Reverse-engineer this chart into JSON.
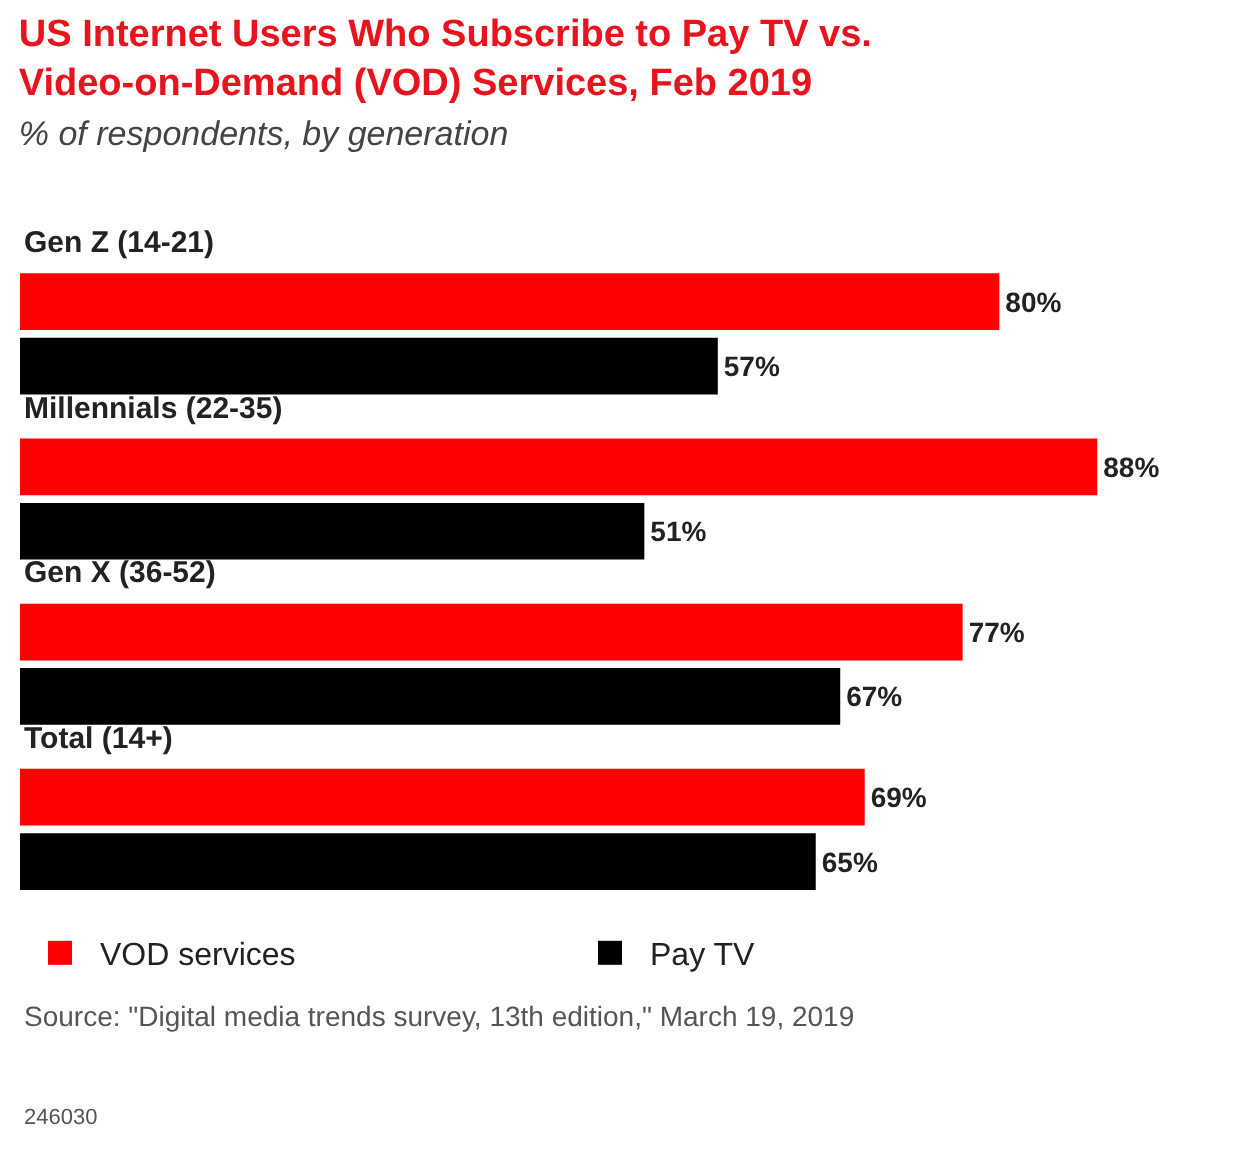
{
  "chart_data": {
    "type": "bar",
    "orientation": "horizontal",
    "title": "US Internet Users Who Subscribe to Pay TV vs. Video-on-Demand (VOD) Services, Feb 2019",
    "subtitle": "% of respondents, by generation",
    "categories": [
      "Gen Z (14-21)",
      "Millennials (22-35)",
      "Gen X (36-52)",
      "Total (14+)"
    ],
    "series": [
      {
        "name": "VOD services",
        "color": "#ff0000",
        "values": [
          80,
          88,
          77,
          69
        ],
        "value_labels": [
          "80%",
          "88%",
          "77%",
          "69%"
        ]
      },
      {
        "name": "Pay TV",
        "color": "#000000",
        "values": [
          57,
          51,
          67,
          65
        ],
        "value_labels": [
          "57%",
          "51%",
          "67%",
          "65%"
        ]
      }
    ],
    "legend": "bottom",
    "annotations": [
      "Source: \"Digital media trends survey, 13th edition,\" March 19, 2019",
      "246030"
    ]
  }
}
